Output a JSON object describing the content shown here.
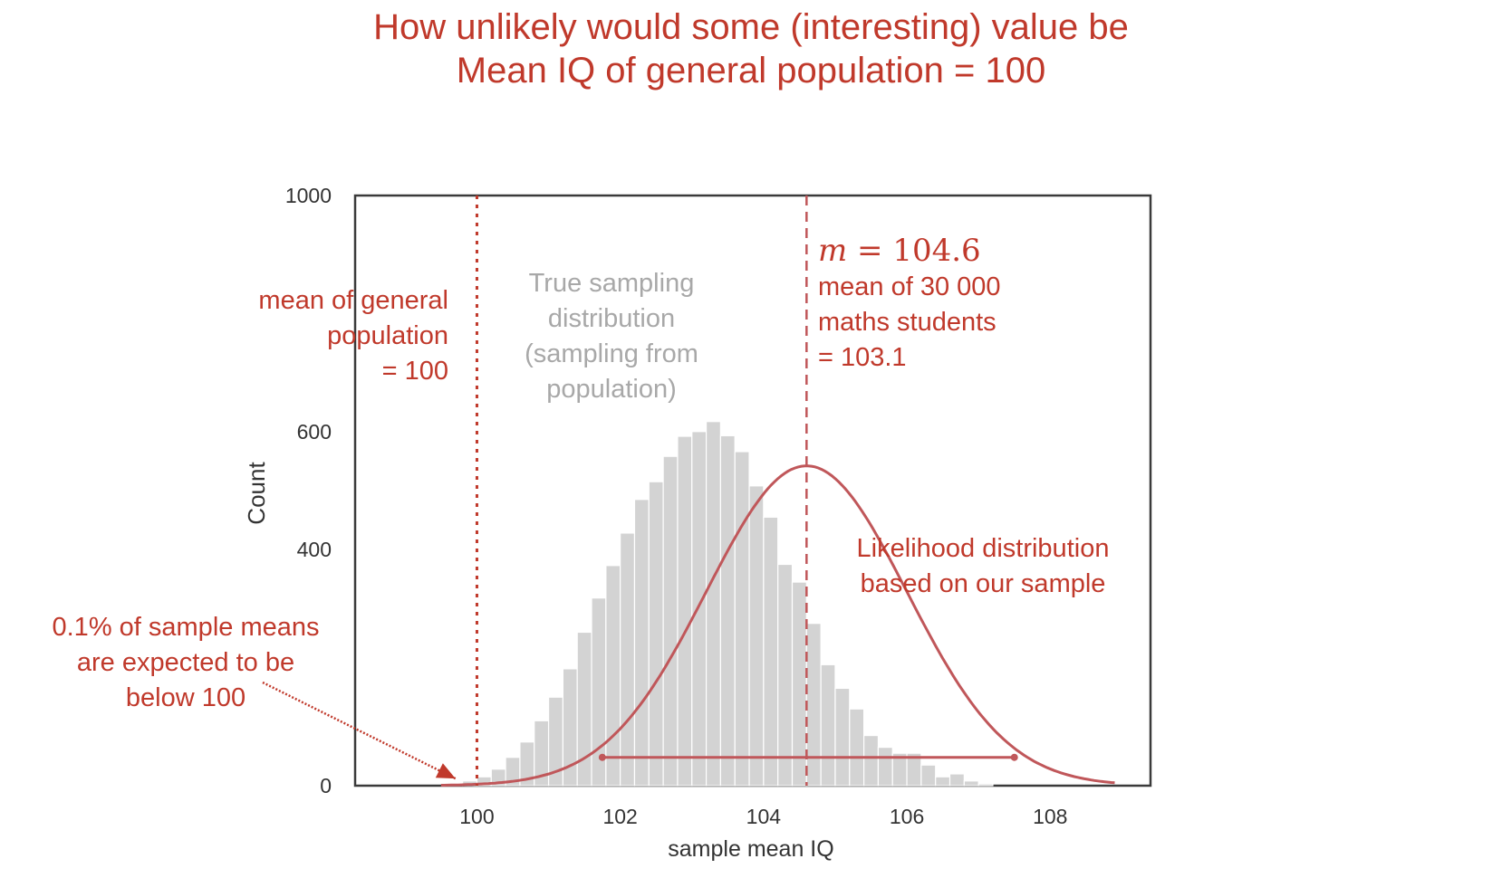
{
  "header": {
    "line1": "How unlikely would some (interesting) value be",
    "line2": "Mean IQ of general population  = 100"
  },
  "colors": {
    "accent": "#c0392b",
    "bars": "#d3d3d3",
    "likelihood_curve": "#c0575a",
    "annotation_gray": "#a8a8a8"
  },
  "annotations": {
    "population_mean": "mean of general\npopulation\n= 100",
    "true_sampling": "True sampling\ndistribution\n(sampling from\npopulation)",
    "m_symbol": "m",
    "m_value": " = 104.6",
    "maths_students": "mean of 30 000\nmaths students\n= 103.1",
    "likelihood": "Likelihood distribution\nbased on our sample",
    "tail_probability": "0.1% of sample means\nare expected to be\nbelow 100"
  },
  "chart_data": {
    "type": "bar",
    "xlabel": "sample mean IQ",
    "ylabel": "Count",
    "xlim": [
      98.3,
      109.4
    ],
    "ylim": [
      0,
      1000
    ],
    "xticks": [
      100,
      102,
      104,
      106,
      108
    ],
    "yticks": [
      0,
      400,
      600,
      1000
    ],
    "grid": false,
    "histogram": {
      "name": "True sampling distribution",
      "bin_width": 0.2,
      "bin_starts": [
        99.6,
        99.8,
        100.0,
        100.2,
        100.4,
        100.6,
        100.8,
        101.0,
        101.2,
        101.4,
        101.6,
        101.8,
        102.0,
        102.2,
        102.4,
        102.6,
        102.8,
        103.0,
        103.2,
        103.4,
        103.6,
        103.8,
        104.0,
        104.2,
        104.4,
        104.6,
        104.8,
        105.0,
        105.2,
        105.4,
        105.6,
        105.8,
        106.0,
        106.2,
        106.4,
        106.6,
        106.8,
        107.0
      ],
      "counts": [
        3,
        8,
        15,
        28,
        48,
        74,
        110,
        150,
        198,
        260,
        318,
        373,
        428,
        485,
        515,
        558,
        592,
        600,
        617,
        593,
        566,
        508,
        455,
        375,
        345,
        275,
        205,
        165,
        130,
        85,
        65,
        55,
        55,
        35,
        15,
        20,
        8,
        3
      ]
    },
    "likelihood_curve": {
      "name": "Likelihood distribution based on our sample",
      "mean": 104.6,
      "sd": 1.4,
      "peak_count": 542,
      "x_range": [
        99.5,
        108.9
      ]
    },
    "reference_lines": [
      {
        "x": 100,
        "label": "mean of general population = 100",
        "style": "dotted"
      },
      {
        "x": 104.6,
        "label": "m = 104.6",
        "style": "dashed"
      }
    ],
    "interval": {
      "from": 101.75,
      "to": 107.5,
      "y": 48
    },
    "arrow_target": {
      "x": 99.7,
      "y": 12
    }
  }
}
